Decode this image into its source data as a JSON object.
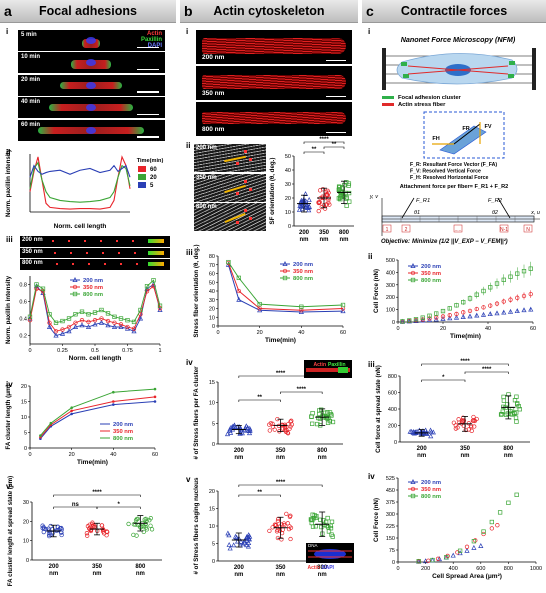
{
  "panel_a": {
    "letter": "a",
    "title": "Focal adhesions",
    "sub_labels": [
      "i",
      "ii",
      "iii",
      "iv",
      "v"
    ],
    "micrographs": {
      "times": [
        "5 min",
        "10 min",
        "20 min",
        "40 min",
        "60 min"
      ],
      "channels": [
        "Actin",
        "Paxillin",
        "DAPI"
      ]
    },
    "ii_plot": {
      "ylabel": "Norm. paxillin intensity",
      "xlabel": "Norm. cell length",
      "legend_title": "Time(min)",
      "series": [
        {
          "name": "60",
          "color": "#e8242a"
        },
        {
          "name": "20",
          "color": "#3aa535"
        },
        {
          "name": "5",
          "color": "#2a3fb5"
        }
      ]
    },
    "iii_strips": [
      "200 nm",
      "350 nm",
      "800 nm"
    ],
    "iii_plot": {
      "ylabel": "Norm. paxillin intensity",
      "xlabel": "Norm. cell length",
      "x_ticks": [
        "0",
        "0.25",
        "0.5",
        "0.75",
        "1"
      ],
      "y_ticks": [
        "0.2",
        "0.4",
        "0.6",
        "0.8"
      ],
      "series": [
        {
          "name": "200 nm",
          "color": "#2a3fb5"
        },
        {
          "name": "350 nm",
          "color": "#e8242a"
        },
        {
          "name": "800 nm",
          "color": "#3aa535"
        }
      ]
    },
    "iv_plot": {
      "ylabel": "FA cluster length (μm)",
      "xlabel": "Time(min)",
      "x_ticks": [
        "0",
        "20",
        "40",
        "60"
      ],
      "y_ticks": [
        "0",
        "5",
        "10",
        "15",
        "20"
      ],
      "series": [
        {
          "name": "200 nm",
          "color": "#2a3fb5"
        },
        {
          "name": "350 nm",
          "color": "#e8242a"
        },
        {
          "name": "800 nm",
          "color": "#3aa535"
        }
      ]
    },
    "v_plot": {
      "ylabel": "FA cluster length at spread state (μm)",
      "y_ticks": [
        "0",
        "10",
        "20",
        "30"
      ],
      "categories": [
        "200 nm",
        "350 nm",
        "800 nm"
      ],
      "sig": [
        "ns",
        "*",
        "****"
      ]
    }
  },
  "panel_b": {
    "letter": "b",
    "title": "Actin cytoskeleton",
    "sub_labels": [
      "i",
      "ii",
      "iii",
      "iv",
      "v"
    ],
    "i_images": [
      "200 nm",
      "350 nm",
      "800 nm"
    ],
    "ii_images": [
      "200 nm",
      "350 nm",
      "800 nm"
    ],
    "ii_plot": {
      "ylabel": "SF orientation (θ, deg.)",
      "y_ticks": [
        "0",
        "10",
        "20",
        "30",
        "40",
        "50"
      ],
      "categories": [
        "200 nm",
        "350 nm",
        "800 nm"
      ],
      "sig": [
        "**",
        "**",
        "****"
      ]
    },
    "iii_plot": {
      "ylabel": "Stress fiber orientation (θ, deg.)",
      "xlabel": "Time(min)",
      "x_ticks": [
        "0",
        "20",
        "40",
        "60"
      ],
      "y_ticks": [
        "0",
        "10",
        "20",
        "30",
        "40",
        "50",
        "60",
        "70",
        "80"
      ],
      "series": [
        {
          "name": "200 nm",
          "color": "#2a3fb5"
        },
        {
          "name": "350 nm",
          "color": "#e8242a"
        },
        {
          "name": "800 nm",
          "color": "#3aa535"
        }
      ]
    },
    "iv_plot": {
      "ylabel": "# of Stress fibers per FA cluster",
      "y_ticks": [
        "0",
        "5",
        "10",
        "15"
      ],
      "categories": [
        "200 nm",
        "350 nm",
        "800 nm"
      ],
      "sig": [
        "**",
        "****",
        "****"
      ],
      "inset_labels": [
        "Actin",
        "Paxillin"
      ]
    },
    "v_plot": {
      "ylabel": "# of Stress fibers caging nucleus",
      "y_ticks": [
        "0",
        "5",
        "10",
        "15",
        "20"
      ],
      "categories": [
        "200 nm",
        "350 nm",
        "800 nm"
      ],
      "sig": [
        "**",
        "****"
      ],
      "inset_labels": [
        "Actin",
        "DAPI",
        "DNA"
      ]
    }
  },
  "panel_c": {
    "letter": "c",
    "title": "Contractile forces",
    "sub_labels": [
      "i",
      "ii",
      "iii",
      "iv"
    ],
    "nfm_title": "Nanonet Force Microscopy (NFM)",
    "nfm_legend": [
      "Focal adhesion cluster",
      "Actin stress fiber"
    ],
    "vector_labels": [
      "FR",
      "FV",
      "FH"
    ],
    "definitions": [
      "F_R: Resultant Force Vector (F_FA)",
      "F_V: Resolved Vertical Force",
      "F_H: Resolved Horizontal Force"
    ],
    "attachment": "Attachment force per fiber= F_R1 + F_R2",
    "beam_labels": [
      "y, v",
      "F_R1",
      "F_R2",
      "θ1",
      "θ2",
      "x, u",
      "1",
      "2",
      ".....",
      "N-1",
      "N"
    ],
    "objective_label": "Objective:",
    "objective_formula": "Minimize (1/2 ||V_EXP − V_FEM||²)",
    "ii_plot": {
      "ylabel": "Cell Force (nN)",
      "xlabel": "Time(min)",
      "x_ticks": [
        "0",
        "20",
        "40",
        "60"
      ],
      "y_ticks": [
        "0",
        "100",
        "200",
        "300",
        "400",
        "500"
      ],
      "series": [
        {
          "name": "200 nm",
          "color": "#2a3fb5"
        },
        {
          "name": "350 nm",
          "color": "#e8242a"
        },
        {
          "name": "800 nm",
          "color": "#3aa535"
        }
      ]
    },
    "iii_plot": {
      "ylabel": "Cell force at spread state (nN)",
      "y_ticks": [
        "0",
        "200",
        "400",
        "600",
        "800"
      ],
      "categories": [
        "200 nm",
        "350 nm",
        "800 nm"
      ],
      "sig": [
        "*",
        "****",
        "****"
      ]
    },
    "iv_plot": {
      "ylabel": "Cell Force (nN)",
      "xlabel": "Cell Spread Area (μm²)",
      "x_ticks": [
        "0",
        "200",
        "400",
        "600",
        "800",
        "1000"
      ],
      "y_ticks": [
        "0",
        "75",
        "150",
        "225",
        "300",
        "375",
        "450",
        "525"
      ],
      "series": [
        {
          "name": "200 nm",
          "color": "#2a3fb5"
        },
        {
          "name": "350 nm",
          "color": "#e8242a"
        },
        {
          "name": "800 nm",
          "color": "#3aa535"
        }
      ]
    }
  },
  "chart_data": [
    {
      "id": "a-ii",
      "type": "line",
      "title": "",
      "xlabel": "Norm. cell length",
      "ylabel": "Norm. paxillin intensity",
      "xlim": [
        0,
        1
      ],
      "ylim": [
        0,
        1
      ],
      "x": [
        0,
        0.04,
        0.08,
        0.12,
        0.16,
        0.2,
        0.3,
        0.4,
        0.5,
        0.6,
        0.7,
        0.8,
        0.84,
        0.88,
        0.92,
        0.96,
        1.0
      ],
      "series": [
        {
          "name": "60",
          "values": [
            0.35,
            0.7,
            0.95,
            0.55,
            0.15,
            0.08,
            0.06,
            0.05,
            0.06,
            0.06,
            0.05,
            0.08,
            0.2,
            0.6,
            0.95,
            0.8,
            0.4
          ]
        },
        {
          "name": "20",
          "values": [
            0.4,
            0.75,
            0.85,
            0.55,
            0.35,
            0.25,
            0.2,
            0.18,
            0.17,
            0.18,
            0.2,
            0.25,
            0.35,
            0.6,
            0.8,
            0.75,
            0.45
          ]
        },
        {
          "name": "5",
          "values": [
            0.6,
            0.8,
            0.7,
            0.65,
            0.68,
            0.7,
            0.72,
            0.65,
            0.72,
            0.75,
            0.68,
            0.72,
            0.8,
            0.7,
            0.75,
            0.8,
            0.6
          ]
        }
      ]
    },
    {
      "id": "a-iii",
      "type": "line",
      "title": "",
      "xlabel": "Norm. cell length",
      "ylabel": "Norm. paxillin intensity",
      "xlim": [
        0,
        1
      ],
      "ylim": [
        0.1,
        0.9
      ],
      "x": [
        0,
        0.05,
        0.1,
        0.15,
        0.2,
        0.25,
        0.3,
        0.35,
        0.4,
        0.45,
        0.5,
        0.55,
        0.6,
        0.65,
        0.7,
        0.75,
        0.8,
        0.85,
        0.9,
        0.95,
        1.0
      ],
      "series": [
        {
          "name": "200 nm",
          "values": [
            0.4,
            0.78,
            0.7,
            0.3,
            0.2,
            0.22,
            0.25,
            0.3,
            0.32,
            0.3,
            0.33,
            0.35,
            0.32,
            0.3,
            0.3,
            0.28,
            0.25,
            0.4,
            0.75,
            0.8,
            0.5
          ]
        },
        {
          "name": "350 nm",
          "values": [
            0.38,
            0.75,
            0.72,
            0.35,
            0.25,
            0.27,
            0.3,
            0.35,
            0.38,
            0.36,
            0.38,
            0.4,
            0.37,
            0.35,
            0.33,
            0.3,
            0.28,
            0.45,
            0.72,
            0.78,
            0.52
          ]
        },
        {
          "name": "800 nm",
          "values": [
            0.42,
            0.8,
            0.75,
            0.45,
            0.35,
            0.37,
            0.4,
            0.45,
            0.48,
            0.45,
            0.47,
            0.5,
            0.46,
            0.42,
            0.4,
            0.38,
            0.36,
            0.5,
            0.78,
            0.85,
            0.55
          ]
        }
      ]
    },
    {
      "id": "a-iv",
      "type": "line",
      "title": "",
      "xlabel": "Time(min)",
      "ylabel": "FA cluster length (μm)",
      "xlim": [
        0,
        60
      ],
      "ylim": [
        0,
        20
      ],
      "x": [
        5,
        10,
        20,
        40,
        60
      ],
      "series": [
        {
          "name": "200 nm",
          "values": [
            3,
            7,
            11,
            14,
            15
          ]
        },
        {
          "name": "350 nm",
          "values": [
            3.5,
            7.5,
            12,
            15,
            16.5
          ]
        },
        {
          "name": "800 nm",
          "values": [
            4,
            8,
            13,
            18,
            19
          ]
        }
      ]
    },
    {
      "id": "a-v",
      "type": "scatter",
      "title": "",
      "ylabel": "FA cluster length at spread state (μm)",
      "categories": [
        "200 nm",
        "350 nm",
        "800 nm"
      ],
      "ylim": [
        0,
        30
      ],
      "series": [
        {
          "name": "",
          "mean": [
            15,
            16,
            19
          ],
          "sd": [
            3,
            3,
            4
          ]
        }
      ]
    },
    {
      "id": "b-ii",
      "type": "scatter",
      "title": "",
      "ylabel": "SF orientation (θ, deg.)",
      "categories": [
        "200 nm",
        "350 nm",
        "800 nm"
      ],
      "ylim": [
        0,
        50
      ],
      "series": [
        {
          "name": "",
          "mean": [
            16,
            20,
            24
          ],
          "sd": [
            6,
            7,
            8
          ]
        }
      ]
    },
    {
      "id": "b-iii",
      "type": "line",
      "title": "",
      "xlabel": "Time(min)",
      "ylabel": "Stress fiber orientation (θ, deg.)",
      "xlim": [
        0,
        60
      ],
      "ylim": [
        0,
        80
      ],
      "x": [
        5,
        10,
        20,
        40,
        60
      ],
      "series": [
        {
          "name": "200 nm",
          "values": [
            70,
            30,
            18,
            16,
            17
          ]
        },
        {
          "name": "350 nm",
          "values": [
            72,
            40,
            20,
            18,
            20
          ]
        },
        {
          "name": "800 nm",
          "values": [
            73,
            55,
            25,
            22,
            24
          ]
        }
      ]
    },
    {
      "id": "b-iv",
      "type": "scatter",
      "title": "",
      "ylabel": "# of Stress fibers per FA cluster",
      "categories": [
        "200 nm",
        "350 nm",
        "800 nm"
      ],
      "ylim": [
        0,
        15
      ],
      "series": [
        {
          "name": "",
          "mean": [
            3.5,
            4.5,
            6.5
          ],
          "sd": [
            1,
            1.5,
            2
          ]
        }
      ]
    },
    {
      "id": "b-v",
      "type": "scatter",
      "title": "",
      "ylabel": "# of Stress fibers caging nucleus",
      "categories": [
        "200 nm",
        "350 nm",
        "800 nm"
      ],
      "ylim": [
        0,
        20
      ],
      "series": [
        {
          "name": "",
          "mean": [
            6,
            9.5,
            10.5
          ],
          "sd": [
            2,
            3,
            3.5
          ]
        }
      ]
    },
    {
      "id": "c-ii",
      "type": "line",
      "title": "",
      "xlabel": "Time(min)",
      "ylabel": "Cell Force (nN)",
      "xlim": [
        0,
        60
      ],
      "ylim": [
        0,
        500
      ],
      "x": [
        2,
        5,
        8,
        11,
        14,
        17,
        20,
        23,
        26,
        29,
        32,
        35,
        38,
        41,
        44,
        47,
        50,
        53,
        56,
        59
      ],
      "series": [
        {
          "name": "200 nm",
          "values": [
            2,
            5,
            8,
            12,
            16,
            20,
            25,
            30,
            35,
            40,
            45,
            52,
            58,
            64,
            70,
            76,
            82,
            88,
            95,
            100
          ]
        },
        {
          "name": "350 nm",
          "values": [
            3,
            8,
            14,
            20,
            28,
            36,
            45,
            55,
            65,
            78,
            90,
            105,
            118,
            132,
            148,
            165,
            180,
            195,
            210,
            225
          ]
        },
        {
          "name": "800 nm",
          "values": [
            5,
            12,
            22,
            35,
            50,
            68,
            88,
            110,
            135,
            160,
            190,
            220,
            250,
            280,
            310,
            340,
            365,
            390,
            410,
            430
          ]
        }
      ]
    },
    {
      "id": "c-iii",
      "type": "scatter",
      "title": "",
      "ylabel": "Cell force at spread state (nN)",
      "categories": [
        "200 nm",
        "350 nm",
        "800 nm"
      ],
      "ylim": [
        0,
        800
      ],
      "series": [
        {
          "name": "",
          "mean": [
            110,
            220,
            420
          ],
          "sd": [
            40,
            90,
            140
          ]
        }
      ]
    },
    {
      "id": "c-iv",
      "type": "line",
      "title": "",
      "xlabel": "Cell Spread Area (μm²)",
      "ylabel": "Cell Force (nN)",
      "xlim": [
        0,
        1000
      ],
      "ylim": [
        0,
        525
      ],
      "series": [
        {
          "name": "200 nm",
          "x": [
            150,
            200,
            250,
            300,
            350,
            400,
            450,
            500,
            550,
            600
          ],
          "values": [
            2,
            5,
            10,
            18,
            28,
            40,
            55,
            70,
            88,
            100
          ]
        },
        {
          "name": "350 nm",
          "x": [
            150,
            220,
            290,
            360,
            430,
            500,
            560,
            620,
            680,
            720
          ],
          "values": [
            3,
            8,
            20,
            38,
            60,
            95,
            135,
            175,
            210,
            230
          ]
        },
        {
          "name": "800 nm",
          "x": [
            150,
            250,
            350,
            450,
            550,
            620,
            680,
            740,
            800,
            860
          ],
          "values": [
            5,
            12,
            30,
            70,
            130,
            190,
            250,
            310,
            370,
            420
          ]
        }
      ]
    }
  ]
}
